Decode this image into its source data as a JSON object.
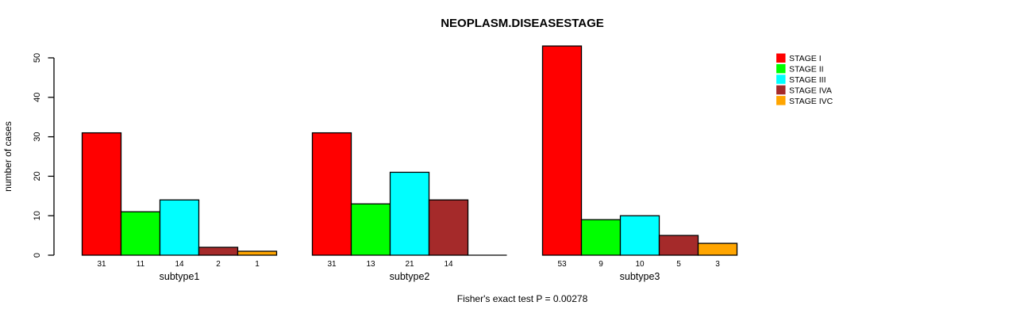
{
  "chart_data": {
    "type": "bar",
    "title": "NEOPLASM.DISEASESTAGE",
    "xlabel": "",
    "ylabel": "number of cases",
    "categories": [
      "subtype1",
      "subtype2",
      "subtype3"
    ],
    "series": [
      {
        "name": "STAGE I",
        "color": "#FF0000",
        "values": [
          31,
          31,
          53
        ]
      },
      {
        "name": "STAGE II",
        "color": "#00FF00",
        "values": [
          11,
          13,
          9
        ]
      },
      {
        "name": "STAGE III",
        "color": "#00FFFF",
        "values": [
          14,
          21,
          10
        ]
      },
      {
        "name": "STAGE IVA",
        "color": "#A52A2A",
        "values": [
          2,
          14,
          5
        ]
      },
      {
        "name": "STAGE IVC",
        "color": "#FFA500",
        "values": [
          1,
          0,
          3
        ]
      }
    ],
    "ylim": [
      0,
      50
    ],
    "yticks": [
      0,
      10,
      20,
      30,
      40,
      50
    ],
    "grid": false,
    "legend_position": "right",
    "bar_value_labels": true,
    "annotation": "Fisher's exact test P = 0.00278"
  }
}
